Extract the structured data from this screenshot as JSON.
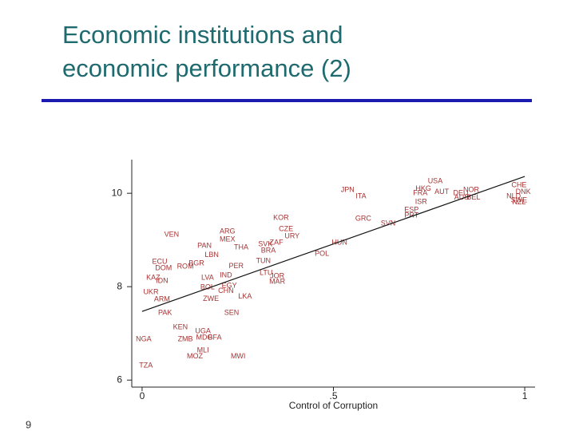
{
  "header": {
    "title": [
      "Economic institutions and",
      "economic performance (2)"
    ]
  },
  "page_number": "9",
  "chart_data": {
    "type": "scatter",
    "xlabel": "Control of Corruption",
    "xlim": [
      -0.027,
      1.027
    ],
    "ylim": [
      5.85,
      10.72
    ],
    "xticks": [
      0,
      {
        "value": 0.5,
        "label": ".5"
      },
      1
    ],
    "yticks": [
      6,
      8,
      10
    ],
    "color": "#a83232",
    "labels": [
      "USA",
      "JPN",
      "ITA",
      "HKG",
      "FRA",
      "AUT",
      "ISR",
      "ESP",
      "PRT",
      "DEU",
      "NOR",
      "AUS",
      "BEL",
      "CHE",
      "DNK",
      "NLD",
      "SWE",
      "NZL",
      "GRC",
      "SVN",
      "KOR",
      "CZE",
      "URY",
      "ZAF",
      "HUN",
      "POL",
      "VEN",
      "ARG",
      "MEX",
      "PAN",
      "THA",
      "SVK",
      "BRA",
      "LBN",
      "TUN",
      "PER",
      "ECU",
      "DOM",
      "ROM",
      "BGR",
      "KAZ",
      "IDN",
      "LTU",
      "JOR",
      "MAR",
      "LVA",
      "IND",
      "BOL",
      "EGY",
      "CHN",
      "ZWE",
      "LKA",
      "UKR",
      "ARM",
      "PAK",
      "SEN",
      "KEN",
      "UGA",
      "MDG",
      "NGA",
      "ZMB",
      "BFA",
      "MLI",
      "MOZ",
      "MWI",
      "TZA"
    ],
    "x": [
      0.766,
      0.537,
      0.572,
      0.735,
      0.727,
      0.783,
      0.729,
      0.704,
      0.704,
      0.833,
      0.86,
      0.835,
      0.866,
      0.985,
      0.996,
      0.971,
      0.985,
      0.985,
      0.578,
      0.643,
      0.363,
      0.376,
      0.392,
      0.351,
      0.516,
      0.47,
      0.077,
      0.223,
      0.223,
      0.163,
      0.259,
      0.322,
      0.33,
      0.182,
      0.317,
      0.246,
      0.046,
      0.056,
      0.113,
      0.142,
      0.029,
      0.052,
      0.324,
      0.353,
      0.353,
      0.171,
      0.219,
      0.171,
      0.228,
      0.219,
      0.18,
      0.269,
      0.023,
      0.052,
      0.06,
      0.234,
      0.1,
      0.159,
      0.163,
      0.004,
      0.113,
      0.19,
      0.159,
      0.138,
      0.251,
      0.01
    ],
    "values": [
      10.26,
      10.07,
      9.93,
      10.09,
      10.0,
      10.03,
      9.81,
      9.64,
      9.52,
      10.0,
      10.07,
      9.91,
      9.91,
      10.17,
      10.03,
      9.93,
      9.85,
      9.8,
      9.45,
      9.35,
      9.47,
      9.23,
      9.08,
      8.94,
      8.94,
      8.7,
      9.11,
      9.18,
      9.01,
      8.87,
      8.84,
      8.91,
      8.77,
      8.68,
      8.55,
      8.44,
      8.53,
      8.39,
      8.43,
      8.5,
      8.19,
      8.12,
      8.29,
      8.22,
      8.1,
      8.19,
      8.24,
      7.98,
      8.02,
      7.91,
      7.74,
      7.79,
      7.88,
      7.73,
      7.44,
      7.44,
      7.13,
      7.04,
      6.91,
      6.87,
      6.87,
      6.91,
      6.63,
      6.51,
      6.51,
      6.31
    ],
    "fit": {
      "x": [
        0,
        1
      ],
      "values": [
        7.47,
        10.36
      ]
    }
  }
}
